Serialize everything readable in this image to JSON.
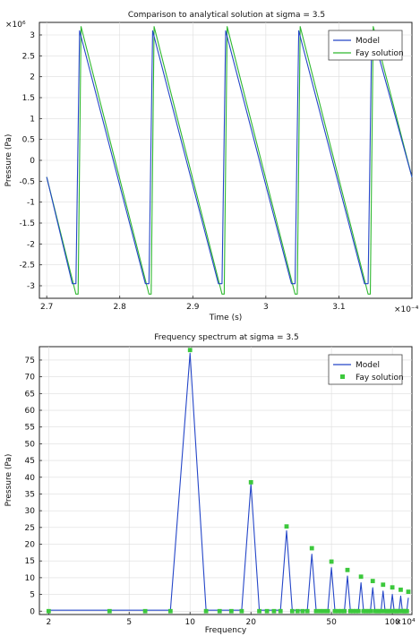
{
  "charts": [
    {
      "type": "line",
      "title": "Comparison to analytical solution at sigma = 3.5",
      "xlabel": "Time (s)",
      "ylabel": "Pressure (Pa)",
      "x_scale_label": "×10⁻⁴",
      "y_scale_label": "×10⁶",
      "x_ticks": [
        "2.7",
        "2.8",
        "2.9",
        "3",
        "3.1"
      ],
      "y_ticks": [
        "3",
        "2.5",
        "2",
        "1.5",
        "1",
        "0.5",
        "0",
        "-0.5",
        "-1",
        "-1.5",
        "-2",
        "-2.5",
        "-3"
      ],
      "legend": [
        "Model",
        "Fay solution"
      ],
      "colors": {
        "model": "#2546c8",
        "fay": "#2fb82f"
      }
    },
    {
      "type": "line",
      "title": "Frequency spectrum at sigma = 3.5",
      "xlabel": "Frequency",
      "ylabel": "Pressure (Pa)",
      "x_scale_label": "×10⁴",
      "x_ticks": [
        "2",
        "5",
        "10",
        "20",
        "50",
        "100"
      ],
      "y_ticks": [
        "75",
        "70",
        "65",
        "60",
        "55",
        "50",
        "45",
        "40",
        "35",
        "30",
        "25",
        "20",
        "15",
        "10",
        "5",
        "0"
      ],
      "legend": [
        "Model",
        "Fay solution"
      ],
      "colors": {
        "model": "#2546c8",
        "fay": "#3cc83c"
      }
    }
  ],
  "chart_data": [
    {
      "type": "line",
      "title": "Comparison to analytical solution at sigma = 3.5",
      "xlabel": "Time (s)",
      "ylabel": "Pressure (Pa)",
      "x_scale": "1e-4",
      "y_scale": "1e6",
      "xlim": [
        2.69,
        3.2
      ],
      "ylim": [
        -3.3,
        3.3
      ],
      "grid": true,
      "legend_position": "top-right",
      "series": [
        {
          "name": "Model",
          "color": "#2546c8",
          "x": [
            2.7,
            2.735,
            2.74,
            2.745,
            2.835,
            2.84,
            2.845,
            2.935,
            2.94,
            2.945,
            3.035,
            3.04,
            3.045,
            3.135,
            3.14,
            3.145,
            3.2
          ],
          "y": [
            -0.4,
            -2.95,
            -2.95,
            3.1,
            -2.95,
            -2.95,
            3.1,
            -2.95,
            -2.95,
            3.1,
            -2.95,
            -2.95,
            3.1,
            -2.95,
            -2.95,
            3.1,
            -0.4
          ]
        },
        {
          "name": "Fay solution",
          "color": "#2fb82f",
          "x": [
            2.7,
            2.74,
            2.743,
            2.747,
            2.84,
            2.843,
            2.847,
            2.94,
            2.943,
            2.947,
            3.04,
            3.043,
            3.047,
            3.14,
            3.143,
            3.147,
            3.2
          ],
          "y": [
            -0.4,
            -3.2,
            -3.2,
            3.2,
            -3.2,
            -3.2,
            3.2,
            -3.2,
            -3.2,
            3.2,
            -3.2,
            -3.2,
            3.2,
            -3.2,
            -3.2,
            3.2,
            -0.4
          ]
        }
      ]
    },
    {
      "type": "line",
      "title": "Frequency spectrum at sigma = 3.5",
      "xlabel": "Frequency",
      "ylabel": "Pressure (Pa)",
      "x_scale": "1e4",
      "x_log": true,
      "xlim": [
        1.8,
        125
      ],
      "ylim": [
        -1,
        79
      ],
      "grid": true,
      "legend_position": "top-right",
      "series": [
        {
          "name": "Model",
          "color": "#2546c8",
          "x": [
            2,
            4,
            6,
            8,
            10,
            12,
            14,
            16,
            18,
            20,
            22,
            24,
            26,
            28,
            30,
            32,
            34,
            36,
            38,
            40,
            42,
            44,
            46,
            48,
            50,
            52,
            54,
            56,
            58,
            60,
            62,
            64,
            66,
            68,
            70,
            72,
            74,
            76,
            78,
            80,
            82,
            84,
            86,
            88,
            90,
            92,
            94,
            96,
            98,
            100,
            102,
            104,
            106,
            108,
            110,
            112,
            114,
            116,
            118,
            120
          ],
          "y": [
            0.3,
            0.3,
            0.3,
            0.3,
            77,
            0.3,
            0.3,
            0.3,
            0.3,
            38,
            0.3,
            0.3,
            0.3,
            0.3,
            24,
            0.3,
            0.3,
            0.3,
            0.3,
            17,
            0.3,
            0.3,
            0.3,
            0.3,
            13,
            0.3,
            0.3,
            0.3,
            0.3,
            10.5,
            0.3,
            0.3,
            0.3,
            0.3,
            8.5,
            0.3,
            0.3,
            0.3,
            0.3,
            7,
            0.3,
            0.3,
            0.3,
            0.3,
            6,
            0.3,
            0.3,
            0.3,
            0.3,
            5,
            0.3,
            0.3,
            0.3,
            0.3,
            4.5,
            0.3,
            0.3,
            0.3,
            0.3,
            4
          ]
        },
        {
          "name": "Fay solution",
          "color": "#3cc83c",
          "x": [
            2,
            4,
            6,
            8,
            10,
            12,
            14,
            16,
            18,
            20,
            22,
            24,
            26,
            28,
            30,
            32,
            34,
            36,
            38,
            40,
            42,
            44,
            46,
            48,
            50,
            52,
            54,
            56,
            58,
            60,
            62,
            64,
            66,
            68,
            70,
            72,
            74,
            76,
            78,
            80,
            82,
            84,
            86,
            88,
            90,
            92,
            94,
            96,
            98,
            100,
            102,
            104,
            106,
            108,
            110,
            112,
            114,
            116,
            118,
            120
          ],
          "y": [
            0,
            0,
            0,
            0,
            78,
            0,
            0,
            0,
            0,
            38.5,
            0,
            0,
            0,
            0,
            25.3,
            0,
            0,
            0,
            0,
            18.8,
            0,
            0,
            0,
            0,
            14.8,
            0,
            0,
            0,
            0,
            12.3,
            0,
            0,
            0,
            0,
            10.3,
            0,
            0,
            0,
            0,
            9,
            0,
            0,
            0,
            0,
            7.9,
            0,
            0,
            0,
            0,
            7.1,
            0,
            0,
            0,
            0,
            6.4,
            0,
            0,
            0,
            0,
            5.8
          ]
        }
      ]
    }
  ]
}
